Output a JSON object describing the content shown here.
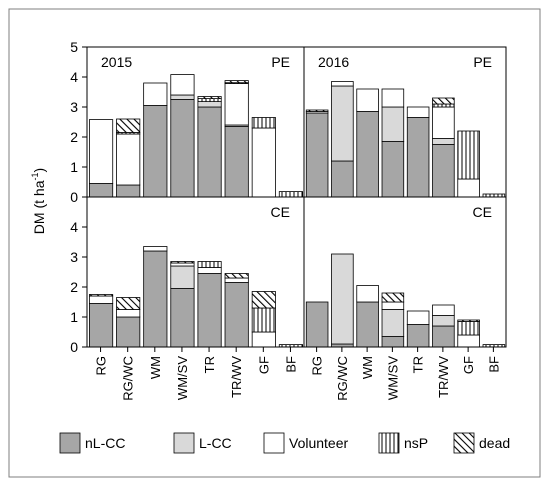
{
  "chart_data": {
    "type": "bar",
    "stacked": true,
    "ylabel": "DM (t ha",
    "ylabel_sup": "-1",
    "ylabel_tail": ")",
    "categories": [
      "RG",
      "RG/WC",
      "WM",
      "WM/SV",
      "TR",
      "TR/WV",
      "GF",
      "BF"
    ],
    "ylim": [
      0,
      5
    ],
    "legend": {
      "position": "bottom",
      "entries": [
        {
          "key": "nlcc",
          "label": "nL-CC",
          "fill": "#a6a6a6"
        },
        {
          "key": "lcc",
          "label": "L-CC",
          "fill": "#d9d9d9"
        },
        {
          "key": "vol",
          "label": "Volunteer",
          "fill": "#ffffff"
        },
        {
          "key": "nsp",
          "label": "nsP",
          "fill": "vlines"
        },
        {
          "key": "dead",
          "label": "dead",
          "fill": "hatch"
        }
      ]
    },
    "panels": [
      {
        "id": "2015-PE",
        "year_label": "2015",
        "corner_label": "PE",
        "stacks": [
          [
            [
              "nlcc",
              0.45
            ],
            [
              "vol",
              2.13
            ]
          ],
          [
            [
              "nlcc",
              0.4
            ],
            [
              "vol",
              1.7
            ],
            [
              "nsp",
              0.05
            ],
            [
              "dead",
              0.45
            ]
          ],
          [
            [
              "nlcc",
              3.05
            ],
            [
              "vol",
              0.75
            ]
          ],
          [
            [
              "nlcc",
              3.25
            ],
            [
              "lcc",
              0.15
            ],
            [
              "vol",
              0.68
            ]
          ],
          [
            [
              "nlcc",
              3.0
            ],
            [
              "lcc",
              0.18
            ],
            [
              "nsp",
              0.1
            ],
            [
              "dead",
              0.07
            ]
          ],
          [
            [
              "nlcc",
              2.35
            ],
            [
              "lcc",
              0.05
            ],
            [
              "vol",
              1.38
            ],
            [
              "nsp",
              0.03
            ],
            [
              "dead",
              0.07
            ]
          ],
          [
            [
              "vol",
              2.3
            ],
            [
              "nsp",
              0.35
            ]
          ],
          [
            [
              "nsp",
              0.18
            ]
          ]
        ]
      },
      {
        "id": "2016-PE",
        "year_label": "2016",
        "corner_label": "PE",
        "stacks": [
          [
            [
              "nlcc",
              2.8
            ],
            [
              "vol",
              0.05
            ],
            [
              "dead",
              0.05
            ]
          ],
          [
            [
              "nlcc",
              1.2
            ],
            [
              "lcc",
              2.5
            ],
            [
              "vol",
              0.15
            ]
          ],
          [
            [
              "nlcc",
              2.85
            ],
            [
              "vol",
              0.75
            ]
          ],
          [
            [
              "nlcc",
              1.85
            ],
            [
              "lcc",
              1.15
            ],
            [
              "vol",
              0.6
            ]
          ],
          [
            [
              "nlcc",
              2.65
            ],
            [
              "vol",
              0.35
            ]
          ],
          [
            [
              "nlcc",
              1.75
            ],
            [
              "lcc",
              0.2
            ],
            [
              "vol",
              1.05
            ],
            [
              "nsp",
              0.1
            ],
            [
              "dead",
              0.2
            ]
          ],
          [
            [
              "vol",
              0.6
            ],
            [
              "nsp",
              1.6
            ]
          ],
          [
            [
              "nsp",
              0.1
            ]
          ]
        ]
      },
      {
        "id": "2015-CE",
        "corner_label": "CE",
        "stacks": [
          [
            [
              "nlcc",
              1.45
            ],
            [
              "vol",
              0.25
            ],
            [
              "dead",
              0.05
            ]
          ],
          [
            [
              "nlcc",
              1.0
            ],
            [
              "vol",
              0.25
            ],
            [
              "dead",
              0.4
            ]
          ],
          [
            [
              "nlcc",
              3.2
            ],
            [
              "vol",
              0.15
            ]
          ],
          [
            [
              "nlcc",
              1.95
            ],
            [
              "lcc",
              0.75
            ],
            [
              "vol",
              0.1
            ],
            [
              "dead",
              0.05
            ]
          ],
          [
            [
              "nlcc",
              2.45
            ],
            [
              "vol",
              0.2
            ],
            [
              "nsp",
              0.2
            ]
          ],
          [
            [
              "nlcc",
              2.15
            ],
            [
              "vol",
              0.15
            ],
            [
              "dead",
              0.15
            ]
          ],
          [
            [
              "vol",
              0.5
            ],
            [
              "nsp",
              0.8
            ],
            [
              "dead",
              0.55
            ]
          ],
          [
            [
              "nsp",
              0.08
            ]
          ]
        ]
      },
      {
        "id": "2016-CE",
        "corner_label": "CE",
        "stacks": [
          [
            [
              "nlcc",
              1.5
            ]
          ],
          [
            [
              "nlcc",
              0.1
            ],
            [
              "lcc",
              3.0
            ]
          ],
          [
            [
              "nlcc",
              1.5
            ],
            [
              "vol",
              0.55
            ]
          ],
          [
            [
              "nlcc",
              0.35
            ],
            [
              "lcc",
              0.9
            ],
            [
              "vol",
              0.25
            ],
            [
              "dead",
              0.3
            ]
          ],
          [
            [
              "nlcc",
              0.75
            ],
            [
              "vol",
              0.45
            ]
          ],
          [
            [
              "nlcc",
              0.7
            ],
            [
              "lcc",
              0.35
            ],
            [
              "vol",
              0.35
            ]
          ],
          [
            [
              "vol",
              0.4
            ],
            [
              "nsp",
              0.45
            ],
            [
              "dead",
              0.05
            ]
          ],
          [
            [
              "nsp",
              0.08
            ]
          ]
        ]
      }
    ],
    "yticks_top": [
      0,
      1,
      2,
      3,
      4,
      5
    ],
    "yticks_bottom": [
      0,
      1,
      2,
      3,
      4
    ]
  }
}
